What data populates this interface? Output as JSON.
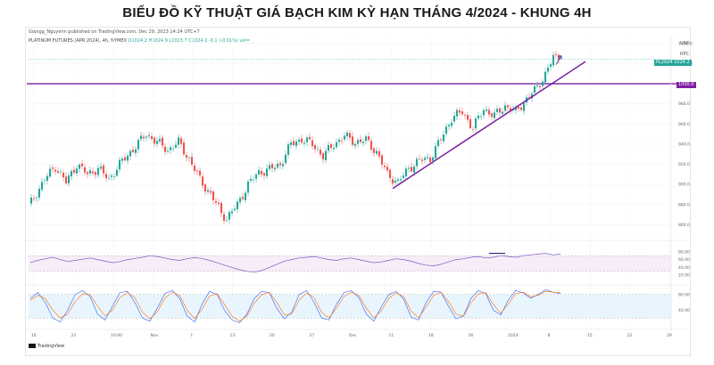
{
  "page": {
    "title": "BIỂU ĐỒ KỸ THUẬT GIÁ BẠCH KIM KỲ HẠN THÁNG 4/2024 - KHUNG 4H",
    "published": "Giangg_Nguyenn published on TradingView.com, Dec 29, 2023 14:24 UTC+7",
    "symbol": "PLATINUM FUTURES (APR 2024), 4h, NYMEX",
    "ohlc": "O1024.2  H1024.9  L1023.7  C1024.2  -0.1 (-0.01%)  vol=",
    "currency": "USD",
    "currency_sub": "RPC",
    "ticker_tag": "PL2024",
    "last_price_tag": "1024.2",
    "level_tag": "1000.0",
    "logo": "TradingView",
    "colors": {
      "up": "#26a69a",
      "down": "#ef5350",
      "line": "#7b1fa2",
      "rsi": "#7e57c2",
      "stoch_k": "#2962ff",
      "stoch_d": "#ff6d00"
    }
  },
  "chart_data": {
    "type": "candlestick",
    "y_axis_labels": [
      "1040.0",
      "1020.0",
      "1000.0",
      "980.0",
      "960.0",
      "940.0",
      "920.0",
      "900.0",
      "880.0",
      "860.0"
    ],
    "ylim": [
      848,
      1046
    ],
    "x_axis_labels": [
      "16",
      "23",
      "10:00",
      "Nov",
      "7",
      "13",
      "20",
      "27",
      "Dec",
      "11",
      "18",
      "26",
      "2024",
      "8",
      "15",
      "22",
      "29"
    ],
    "close_path": [
      {
        "bar": 0,
        "price": 878
      },
      {
        "bar": 6,
        "price": 905
      },
      {
        "bar": 10,
        "price": 918
      },
      {
        "bar": 14,
        "price": 902
      },
      {
        "bar": 18,
        "price": 920
      },
      {
        "bar": 22,
        "price": 910
      },
      {
        "bar": 26,
        "price": 916
      },
      {
        "bar": 30,
        "price": 905
      },
      {
        "bar": 34,
        "price": 920
      },
      {
        "bar": 40,
        "price": 938
      },
      {
        "bar": 44,
        "price": 950
      },
      {
        "bar": 48,
        "price": 942
      },
      {
        "bar": 52,
        "price": 934
      },
      {
        "bar": 56,
        "price": 942
      },
      {
        "bar": 60,
        "price": 925
      },
      {
        "bar": 64,
        "price": 905
      },
      {
        "bar": 68,
        "price": 890
      },
      {
        "bar": 72,
        "price": 872
      },
      {
        "bar": 74,
        "price": 866
      },
      {
        "bar": 78,
        "price": 880
      },
      {
        "bar": 82,
        "price": 900
      },
      {
        "bar": 86,
        "price": 912
      },
      {
        "bar": 90,
        "price": 915
      },
      {
        "bar": 94,
        "price": 920
      },
      {
        "bar": 98,
        "price": 940
      },
      {
        "bar": 102,
        "price": 945
      },
      {
        "bar": 106,
        "price": 940
      },
      {
        "bar": 110,
        "price": 928
      },
      {
        "bar": 114,
        "price": 940
      },
      {
        "bar": 118,
        "price": 948
      },
      {
        "bar": 122,
        "price": 942
      },
      {
        "bar": 126,
        "price": 944
      },
      {
        "bar": 130,
        "price": 932
      },
      {
        "bar": 134,
        "price": 910
      },
      {
        "bar": 138,
        "price": 902
      },
      {
        "bar": 142,
        "price": 916
      },
      {
        "bar": 146,
        "price": 924
      },
      {
        "bar": 150,
        "price": 926
      },
      {
        "bar": 154,
        "price": 945
      },
      {
        "bar": 158,
        "price": 966
      },
      {
        "bar": 162,
        "price": 972
      },
      {
        "bar": 166,
        "price": 956
      },
      {
        "bar": 170,
        "price": 975
      },
      {
        "bar": 174,
        "price": 968
      },
      {
        "bar": 178,
        "price": 978
      },
      {
        "bar": 182,
        "price": 972
      },
      {
        "bar": 186,
        "price": 985
      },
      {
        "bar": 190,
        "price": 996
      },
      {
        "bar": 193,
        "price": 1010
      },
      {
        "bar": 196,
        "price": 1026
      },
      {
        "bar": 198,
        "price": 1024
      }
    ],
    "last_price": 1024.2,
    "horizontal_level": 1000.0,
    "trendline": {
      "from": {
        "bar": 136,
        "price": 896
      },
      "to": {
        "bar": 208,
        "price": 1022
      }
    },
    "rsi": {
      "levels": [
        80,
        60,
        40,
        20
      ],
      "upper": 70,
      "lower": 30,
      "values": [
        52,
        58,
        62,
        66,
        60,
        55,
        58,
        61,
        64,
        60,
        56,
        52,
        55,
        60,
        63,
        66,
        70,
        68,
        64,
        60,
        58,
        62,
        65,
        63,
        58,
        52,
        46,
        40,
        34,
        30,
        28,
        32,
        40,
        48,
        56,
        60,
        64,
        66,
        68,
        64,
        60,
        58,
        62,
        64,
        60,
        56,
        52,
        54,
        58,
        62,
        60,
        56,
        50,
        46,
        44,
        48,
        54,
        60,
        62,
        66,
        68,
        64,
        66,
        70,
        68,
        66,
        70,
        72,
        74,
        76,
        72,
        74
      ]
    },
    "stochastic": {
      "levels": [
        80,
        40
      ],
      "upper": 80,
      "lower": 20,
      "k_values": [
        70,
        85,
        60,
        20,
        10,
        40,
        80,
        90,
        75,
        30,
        15,
        50,
        85,
        88,
        60,
        20,
        12,
        45,
        82,
        90,
        70,
        25,
        10,
        55,
        88,
        80,
        40,
        15,
        8,
        30,
        70,
        88,
        85,
        45,
        18,
        35,
        80,
        90,
        60,
        20,
        15,
        55,
        85,
        90,
        72,
        30,
        12,
        48,
        80,
        88,
        68,
        22,
        15,
        60,
        88,
        86,
        50,
        18,
        25,
        70,
        90,
        82,
        40,
        28,
        66,
        90,
        84,
        70,
        80,
        92,
        86,
        82
      ],
      "d_values": [
        65,
        78,
        70,
        40,
        20,
        30,
        62,
        82,
        80,
        50,
        25,
        40,
        72,
        85,
        72,
        35,
        18,
        35,
        70,
        86,
        78,
        40,
        18,
        42,
        76,
        82,
        55,
        25,
        12,
        25,
        58,
        80,
        85,
        60,
        28,
        30,
        66,
        84,
        72,
        35,
        20,
        45,
        75,
        86,
        78,
        45,
        20,
        38,
        70,
        84,
        74,
        38,
        20,
        48,
        78,
        86,
        62,
        30,
        24,
        58,
        82,
        84,
        55,
        32,
        56,
        82,
        86,
        74,
        78,
        88,
        86,
        84
      ]
    }
  }
}
